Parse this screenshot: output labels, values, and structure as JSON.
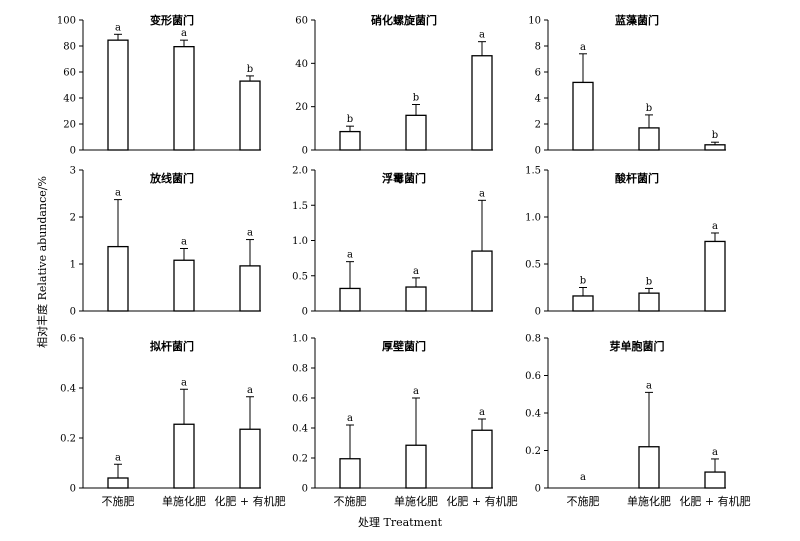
{
  "figure": {
    "ylabel": "相对丰度 Relative abundance/%",
    "xlabel": "处理 Treatment"
  },
  "chart_data": [
    {
      "type": "bar",
      "title": "变形菌门",
      "categories": [
        "不施肥",
        "单施化肥",
        "化肥 + 有机肥"
      ],
      "values": [
        84.5,
        79.5,
        53
      ],
      "errors": [
        4.5,
        5,
        4
      ],
      "letters": [
        "a",
        "a",
        "b"
      ],
      "ylim": [
        0,
        100
      ],
      "yticks": [
        0,
        20,
        40,
        60,
        80,
        100
      ],
      "ytick_labels": [
        "0",
        "20",
        "40",
        "60",
        "80",
        "100"
      ],
      "show_xticklabels": false
    },
    {
      "type": "bar",
      "title": "硝化螺旋菌门",
      "categories": [
        "不施肥",
        "单施化肥",
        "化肥 + 有机肥"
      ],
      "values": [
        8.5,
        16,
        43.5
      ],
      "errors": [
        2.5,
        5,
        6.5
      ],
      "letters": [
        "b",
        "b",
        "a"
      ],
      "ylim": [
        0,
        60
      ],
      "yticks": [
        0,
        20,
        40,
        60
      ],
      "ytick_labels": [
        "0",
        "20",
        "40",
        "60"
      ],
      "show_xticklabels": false
    },
    {
      "type": "bar",
      "title": "蓝藻菌门",
      "categories": [
        "不施肥",
        "单施化肥",
        "化肥 + 有机肥"
      ],
      "values": [
        5.2,
        1.7,
        0.4
      ],
      "errors": [
        2.2,
        1,
        0.2
      ],
      "letters": [
        "a",
        "b",
        "b"
      ],
      "ylim": [
        0,
        10
      ],
      "yticks": [
        0,
        2,
        4,
        6,
        8,
        10
      ],
      "ytick_labels": [
        "0",
        "2",
        "4",
        "6",
        "8",
        "10"
      ],
      "show_xticklabels": false
    },
    {
      "type": "bar",
      "title": "放线菌门",
      "categories": [
        "不施肥",
        "单施化肥",
        "化肥 + 有机肥"
      ],
      "values": [
        1.37,
        1.08,
        0.96
      ],
      "errors": [
        1,
        0.25,
        0.56
      ],
      "letters": [
        "a",
        "a",
        "a"
      ],
      "ylim": [
        0,
        3
      ],
      "yticks": [
        0,
        1,
        2,
        3
      ],
      "ytick_labels": [
        "0",
        "1",
        "2",
        "3"
      ],
      "show_xticklabels": false
    },
    {
      "type": "bar",
      "title": "浮霉菌门",
      "categories": [
        "不施肥",
        "单施化肥",
        "化肥 + 有机肥"
      ],
      "values": [
        0.32,
        0.34,
        0.85
      ],
      "errors": [
        0.38,
        0.13,
        0.72
      ],
      "letters": [
        "a",
        "a",
        "a"
      ],
      "ylim": [
        0,
        2
      ],
      "yticks": [
        0,
        0.5,
        1,
        1.5,
        2
      ],
      "ytick_labels": [
        "0",
        "0.5",
        "1.0",
        "1.5",
        "2.0"
      ],
      "show_xticklabels": false
    },
    {
      "type": "bar",
      "title": "酸杆菌门",
      "categories": [
        "不施肥",
        "单施化肥",
        "化肥 + 有机肥"
      ],
      "values": [
        0.16,
        0.19,
        0.74
      ],
      "errors": [
        0.09,
        0.05,
        0.09
      ],
      "letters": [
        "b",
        "b",
        "a"
      ],
      "ylim": [
        0,
        1.5
      ],
      "yticks": [
        0,
        0.5,
        1,
        1.5
      ],
      "ytick_labels": [
        "0",
        "0.5",
        "1.0",
        "1.5"
      ],
      "show_xticklabels": false
    },
    {
      "type": "bar",
      "title": "拟杆菌门",
      "categories": [
        "不施肥",
        "单施化肥",
        "化肥 + 有机肥"
      ],
      "values": [
        0.04,
        0.255,
        0.235
      ],
      "errors": [
        0.055,
        0.14,
        0.13
      ],
      "letters": [
        "a",
        "a",
        "a"
      ],
      "ylim": [
        0,
        0.6
      ],
      "yticks": [
        0,
        0.2,
        0.4,
        0.6
      ],
      "ytick_labels": [
        "0",
        "0.2",
        "0.4",
        "0.6"
      ],
      "show_xticklabels": true
    },
    {
      "type": "bar",
      "title": "厚壁菌门",
      "categories": [
        "不施肥",
        "单施化肥",
        "化肥 + 有机肥"
      ],
      "values": [
        0.195,
        0.285,
        0.385
      ],
      "errors": [
        0.225,
        0.315,
        0.075
      ],
      "letters": [
        "a",
        "a",
        "a"
      ],
      "ylim": [
        0,
        1
      ],
      "yticks": [
        0,
        0.2,
        0.4,
        0.6,
        0.8,
        1
      ],
      "ytick_labels": [
        "0",
        "0.2",
        "0.4",
        "0.6",
        "0.8",
        "1.0"
      ],
      "show_xticklabels": true
    },
    {
      "type": "bar",
      "title": "芽单胞菌门",
      "categories": [
        "不施肥",
        "单施化肥",
        "化肥 + 有机肥"
      ],
      "values": [
        0,
        0.22,
        0.085
      ],
      "errors": [
        0,
        0.29,
        0.07
      ],
      "letters": [
        "a",
        "a",
        "a"
      ],
      "ylim": [
        0,
        0.8
      ],
      "yticks": [
        0,
        0.2,
        0.4,
        0.6,
        0.8
      ],
      "ytick_labels": [
        "0",
        "0.2",
        "0.4",
        "0.6",
        "0.8"
      ],
      "show_xticklabels": true
    }
  ]
}
